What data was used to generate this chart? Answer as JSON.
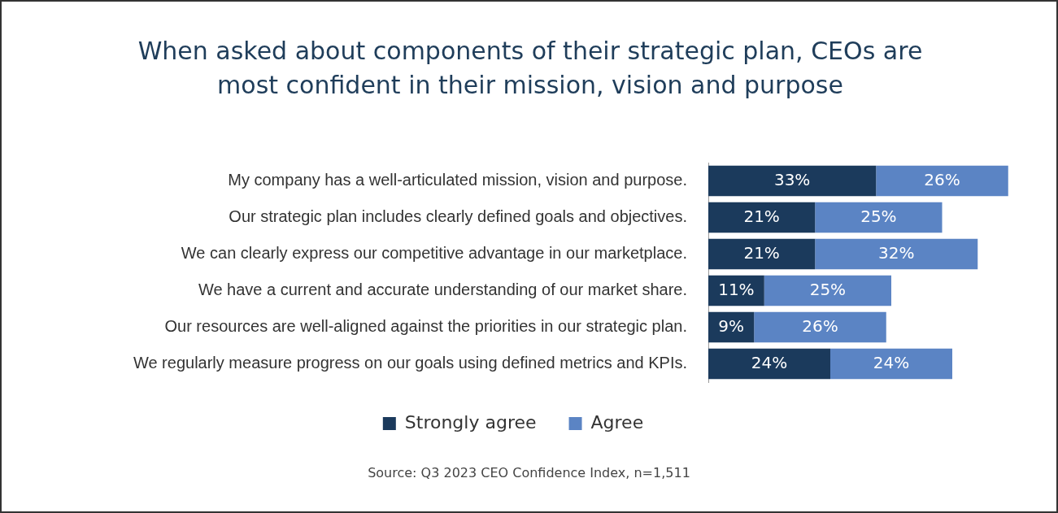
{
  "chart_data": {
    "type": "bar",
    "orientation": "horizontal",
    "stacked": true,
    "title": "When asked about components of their strategic plan, CEOs are most confident in their mission, vision and purpose",
    "categories": [
      "My company has a well-articulated mission, vision and purpose.",
      "Our strategic plan includes clearly defined goals and objectives.",
      "We can clearly express our competitive advantage in our marketplace.",
      "We have a current and accurate understanding of our market share.",
      "Our resources are well-aligned against the priorities in our strategic plan.",
      "We regularly measure progress on our goals using defined metrics and KPIs."
    ],
    "series": [
      {
        "name": "Strongly agree",
        "color": "#1b3a5c",
        "values": [
          33,
          21,
          21,
          11,
          9,
          24
        ],
        "value_labels": [
          "33%",
          "21%",
          "21%",
          "11%",
          "9%",
          "24%"
        ]
      },
      {
        "name": "Agree",
        "color": "#5b84c4",
        "values": [
          26,
          25,
          32,
          25,
          26,
          24
        ],
        "value_labels": [
          "26%",
          "25%",
          "32%",
          "25%",
          "26%",
          "24%"
        ]
      }
    ],
    "legend": "bottom",
    "grid": false,
    "tick_labels": "y",
    "annotations": [
      "Source: Q3 2023 CEO Confidence Index, n=1,511"
    ]
  }
}
